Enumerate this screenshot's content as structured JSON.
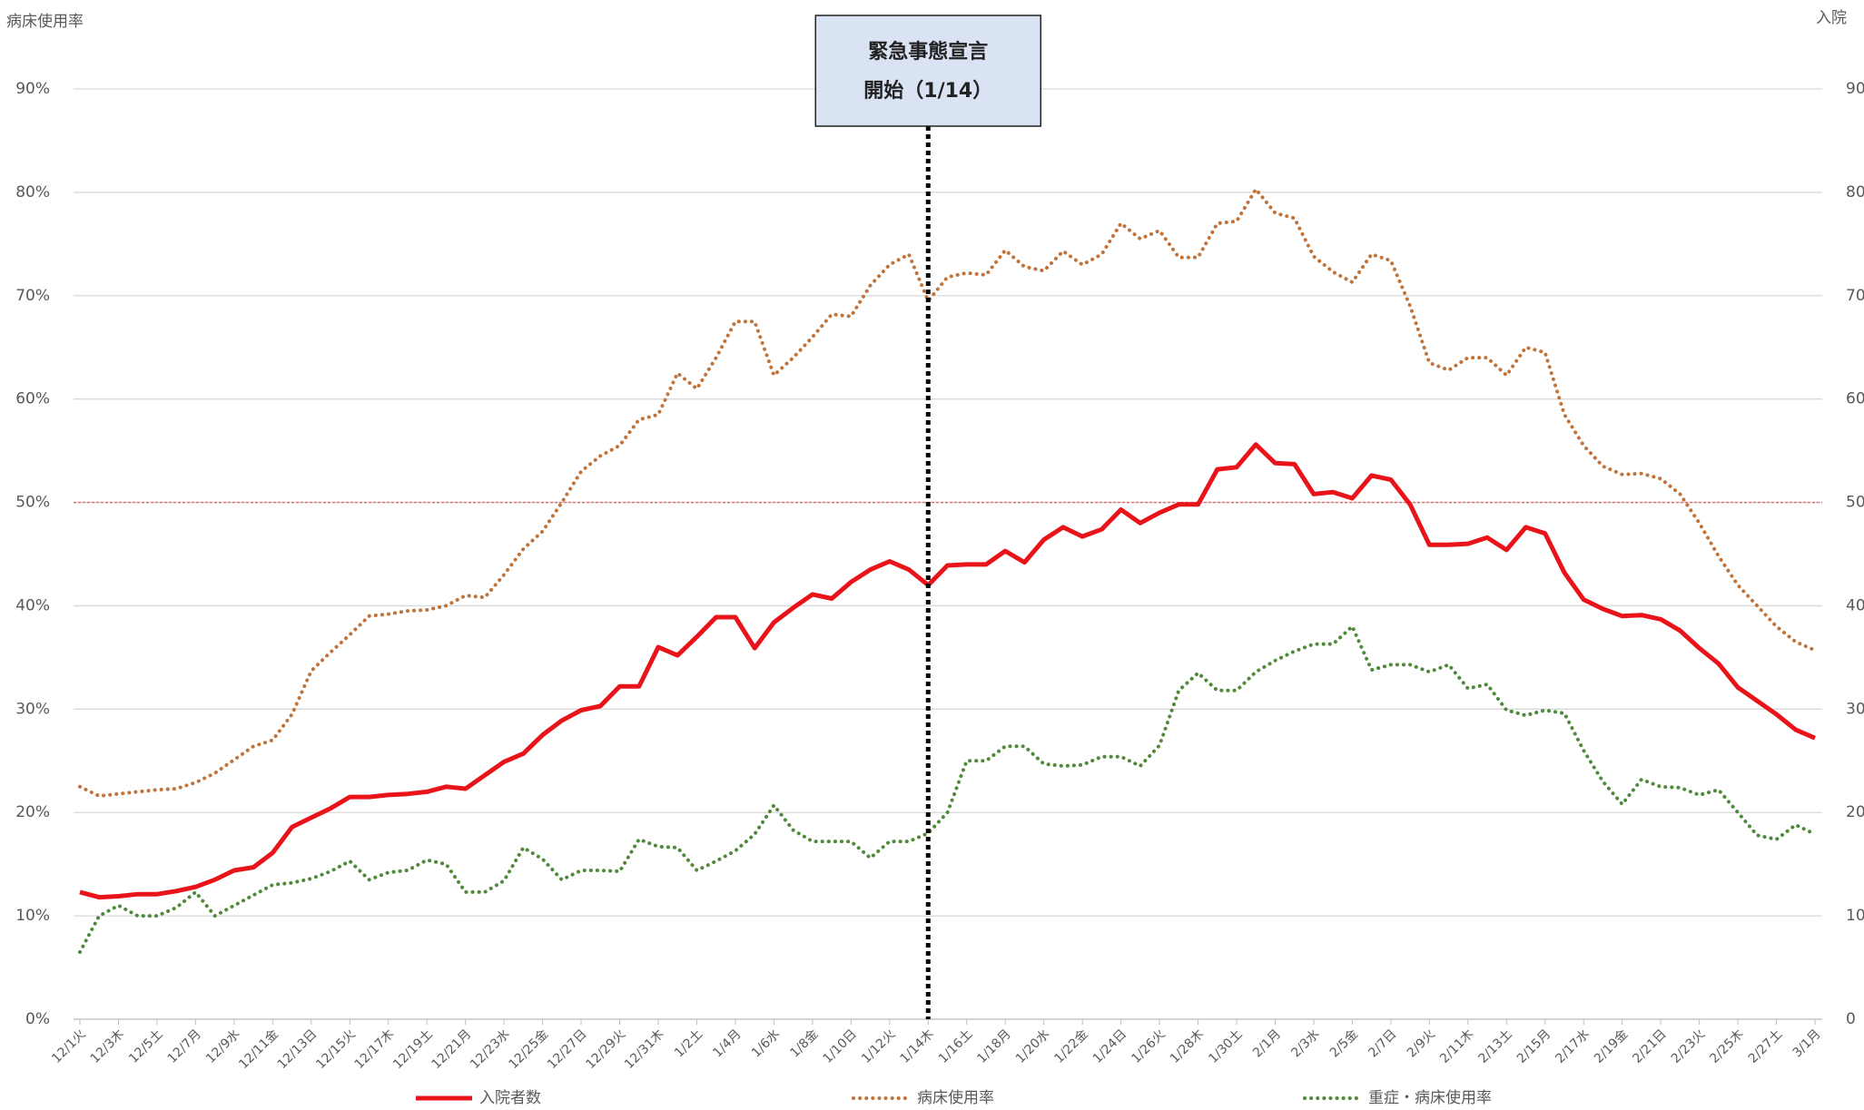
{
  "chart_data": {
    "type": "line",
    "y_axis_title": "病床使用率",
    "y2_axis_title": "入院",
    "categories": [
      "12/1火",
      null,
      "12/3木",
      null,
      "12/5土",
      null,
      "12/7月",
      null,
      "12/9水",
      null,
      "12/11金",
      null,
      "12/13日",
      null,
      "12/15火",
      null,
      "12/17木",
      null,
      "12/19土",
      null,
      "12/21月",
      null,
      "12/23水",
      null,
      "12/25金",
      null,
      "12/27日",
      null,
      "12/29火",
      null,
      "12/31木",
      null,
      "1/2土",
      null,
      "1/4月",
      null,
      "1/6水",
      null,
      "1/8金",
      null,
      "1/10日",
      null,
      "1/12火",
      null,
      "1/14木",
      null,
      "1/16土",
      null,
      "1/18月",
      null,
      "1/20水",
      null,
      "1/22金",
      null,
      "1/24日",
      null,
      "1/26火",
      null,
      "1/28木",
      null,
      "1/30土",
      null,
      "2/1月",
      null,
      "2/3水",
      null,
      "2/5金",
      null,
      "2/7日",
      null,
      "2/9火",
      null,
      "2/11木",
      null,
      "2/13土",
      null,
      "2/15月",
      null,
      "2/17水",
      null,
      "2/19金",
      null,
      "2/21日",
      null,
      "2/23火",
      null,
      "2/25木",
      null,
      "2/27土",
      null,
      "3/1月"
    ],
    "series": [
      {
        "name": "入院者数",
        "color": "#e8141a",
        "style": "solid",
        "axis": "y2",
        "values": [
          12.3,
          11.8,
          11.9,
          12.1,
          12.1,
          12.4,
          12.8,
          13.5,
          14.4,
          14.7,
          16.1,
          18.6,
          19.5,
          20.4,
          21.5,
          21.5,
          21.7,
          21.8,
          22.0,
          22.5,
          22.3,
          23.6,
          24.9,
          25.7,
          27.5,
          28.9,
          29.9,
          30.3,
          32.2,
          32.2,
          36.0,
          35.2,
          37.0,
          38.9,
          38.9,
          35.9,
          38.4,
          39.8,
          41.1,
          40.7,
          42.3,
          43.5,
          44.3,
          43.5,
          42.0,
          43.9,
          44.0,
          44.0,
          45.3,
          44.2,
          46.4,
          47.6,
          46.7,
          47.4,
          49.3,
          48.0,
          49.0,
          49.8,
          49.8,
          53.2,
          53.4,
          55.6,
          53.8,
          53.7,
          50.8,
          51.0,
          50.4,
          52.6,
          52.2,
          49.8,
          45.9,
          45.9,
          46.0,
          46.6,
          45.4,
          47.6,
          47.0,
          43.2,
          40.6,
          39.7,
          39.0,
          39.1,
          38.7,
          37.6,
          35.9,
          34.4,
          32.1,
          30.8,
          29.5,
          28.0,
          27.2
        ]
      },
      {
        "name": "病床使用率",
        "color": "#c0733a",
        "style": "dotted",
        "values": [
          22.5,
          21.6,
          21.8,
          22.0,
          22.2,
          22.3,
          22.9,
          23.8,
          25.1,
          26.4,
          27.0,
          29.5,
          33.7,
          35.5,
          37.2,
          39.0,
          39.2,
          39.5,
          39.6,
          40.0,
          41.0,
          40.8,
          43.0,
          45.5,
          47.2,
          50.0,
          53.0,
          54.5,
          55.5,
          58.0,
          58.5,
          62.5,
          61.0,
          64.0,
          67.5,
          67.5,
          62.3,
          64.0,
          66.0,
          68.2,
          68.0,
          71.0,
          73.0,
          74.0,
          69.5,
          71.8,
          72.2,
          72.0,
          74.4,
          72.8,
          72.4,
          74.3,
          73.0,
          74.0,
          77.0,
          75.5,
          76.3,
          73.7,
          73.7,
          77.0,
          77.2,
          80.3,
          78.0,
          77.5,
          73.8,
          72.3,
          71.3,
          74.0,
          73.4,
          69.0,
          63.5,
          62.8,
          64.0,
          64.0,
          62.3,
          65.0,
          64.5,
          58.5,
          55.5,
          53.5,
          52.7,
          52.8,
          52.3,
          50.8,
          48.0,
          44.8,
          42.0,
          40.0,
          38.0,
          36.5,
          35.7
        ]
      },
      {
        "name": "重症・病床使用率",
        "color": "#4e8a3a",
        "style": "dotted",
        "values": [
          6.5,
          10.0,
          11.0,
          10.0,
          10.0,
          10.8,
          12.3,
          10.0,
          11.0,
          12.0,
          13.0,
          13.2,
          13.6,
          14.3,
          15.3,
          13.5,
          14.2,
          14.4,
          15.4,
          15.0,
          12.3,
          12.3,
          13.4,
          16.6,
          15.5,
          13.5,
          14.4,
          14.4,
          14.3,
          17.4,
          16.7,
          16.6,
          14.4,
          15.3,
          16.3,
          17.9,
          20.7,
          18.3,
          17.2,
          17.2,
          17.2,
          15.6,
          17.2,
          17.2,
          18.0,
          20.0,
          25.0,
          25.0,
          26.4,
          26.4,
          24.7,
          24.5,
          24.6,
          25.4,
          25.4,
          24.5,
          26.5,
          31.8,
          33.5,
          31.8,
          31.8,
          33.6,
          34.7,
          35.6,
          36.3,
          36.3,
          38.0,
          33.8,
          34.3,
          34.3,
          33.6,
          34.3,
          32.0,
          32.4,
          29.9,
          29.4,
          29.9,
          29.6,
          26.0,
          23.0,
          20.8,
          23.2,
          22.5,
          22.4,
          21.7,
          22.2,
          20.0,
          17.8,
          17.4,
          18.8,
          17.9
        ]
      }
    ],
    "ylim": [
      0,
      90
    ],
    "yticks": [
      {
        "value": 0,
        "label": "0%"
      },
      {
        "value": 10,
        "label": "10%"
      },
      {
        "value": 20,
        "label": "20%"
      },
      {
        "value": 30,
        "label": "30%"
      },
      {
        "value": 40,
        "label": "40%"
      },
      {
        "value": 50,
        "label": "50%"
      },
      {
        "value": 60,
        "label": "60%"
      },
      {
        "value": 70,
        "label": "70%"
      },
      {
        "value": 80,
        "label": "80%"
      },
      {
        "value": 90,
        "label": "90%"
      }
    ],
    "y2lim": [
      0,
      90
    ],
    "y2ticks": [
      0,
      10,
      20,
      30,
      40,
      50,
      60,
      70,
      80,
      90
    ],
    "grid": true,
    "reference_line": {
      "value": 50,
      "color": "#e86a6a"
    },
    "annotation": {
      "lines": [
        "緊急事態宣言",
        "開始（1/14）"
      ],
      "x": "1/14木",
      "fill": "#dae3f3"
    },
    "legend": "bottom"
  }
}
